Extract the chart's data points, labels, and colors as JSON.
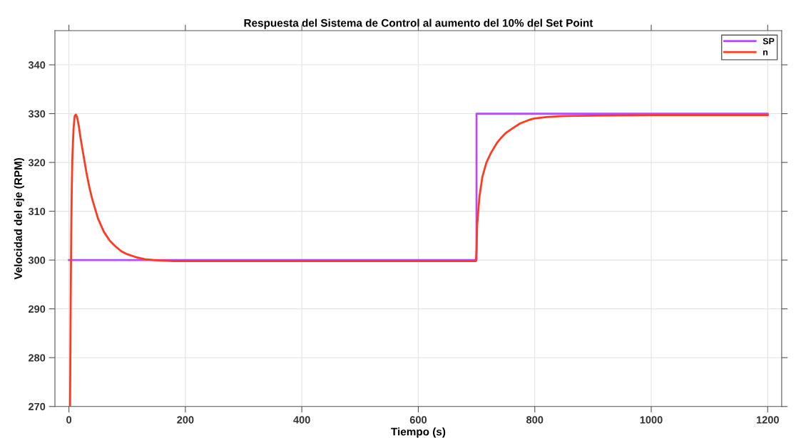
{
  "chart_data": {
    "type": "line",
    "title": "Respuesta del Sistema de Control al aumento del 10% del Set Point",
    "xlabel": "Tiempo (s)",
    "ylabel": "Velocidad del eje (RPM)",
    "xlim": [
      -24,
      1224
    ],
    "ylim": [
      270,
      347
    ],
    "xticks": [
      0,
      200,
      400,
      600,
      800,
      1000,
      1200
    ],
    "yticks": [
      270,
      280,
      290,
      300,
      310,
      320,
      330,
      340
    ],
    "grid": true,
    "legend": "top right",
    "marker": "none",
    "line_style": "solid",
    "series": [
      {
        "name": "SP",
        "color": "#b54bff",
        "x": [
          0,
          700,
          700,
          1200
        ],
        "values": [
          300,
          300,
          330,
          330
        ]
      },
      {
        "name": "n",
        "color": "#ff3a1f",
        "x": [
          2,
          3,
          4,
          5,
          6,
          8,
          10,
          12,
          14,
          17,
          20,
          25,
          30,
          35,
          40,
          50,
          60,
          70,
          80,
          90,
          100,
          115,
          130,
          145,
          160,
          180,
          200,
          300,
          400,
          500,
          600,
          699,
          700,
          701,
          703,
          705,
          710,
          717,
          725,
          735,
          742,
          750,
          762,
          775,
          790,
          799,
          820,
          850,
          900,
          1000,
          1100,
          1200
        ],
        "values": [
          270,
          290,
          305,
          315,
          321,
          327,
          329.5,
          329.8,
          329.3,
          327.5,
          325,
          321.5,
          318,
          315,
          312.5,
          308.5,
          305.8,
          304,
          302.8,
          301.8,
          301.2,
          300.6,
          300.2,
          300,
          299.9,
          299.8,
          299.8,
          299.8,
          299.8,
          299.8,
          299.8,
          299.8,
          302,
          307,
          310,
          313,
          317,
          320,
          322,
          324,
          325,
          326,
          327,
          328,
          328.7,
          329,
          329.3,
          329.5,
          329.6,
          329.7,
          329.7,
          329.7
        ]
      }
    ]
  }
}
